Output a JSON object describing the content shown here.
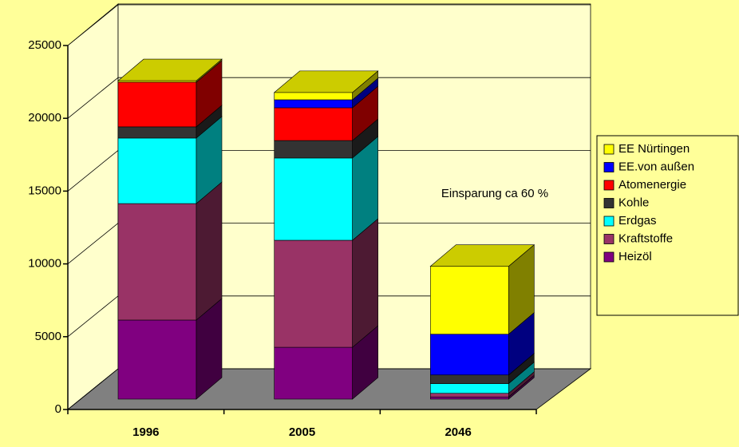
{
  "chart_data": {
    "type": "bar3d_stacked",
    "categories": [
      "1996",
      "2005",
      "2046"
    ],
    "series": [
      {
        "name": "Heizöl",
        "color": "#800080",
        "values": [
          5430,
          3560,
          150
        ]
      },
      {
        "name": "Kraftstoffe",
        "color": "#993366",
        "values": [
          8000,
          7350,
          250
        ]
      },
      {
        "name": "Erdgas",
        "color": "#00ffff",
        "values": [
          4500,
          5650,
          660
        ]
      },
      {
        "name": "Kohle",
        "color": "#333333",
        "values": [
          770,
          1200,
          600
        ]
      },
      {
        "name": "Atomenergie",
        "color": "#ff0000",
        "values": [
          3070,
          2250,
          0
        ]
      },
      {
        "name": "EE.von außen",
        "color": "#0000ff",
        "values": [
          0,
          550,
          2800
        ]
      },
      {
        "name": "EE Nürtingen",
        "color": "#ffff00",
        "values": [
          100,
          500,
          4660
        ]
      }
    ],
    "ylim": [
      0,
      25000
    ],
    "yticks": [
      0,
      5000,
      10000,
      15000,
      20000,
      25000
    ],
    "grid": true,
    "annotation": "Einsparung ca 60 %",
    "legend": "right"
  }
}
